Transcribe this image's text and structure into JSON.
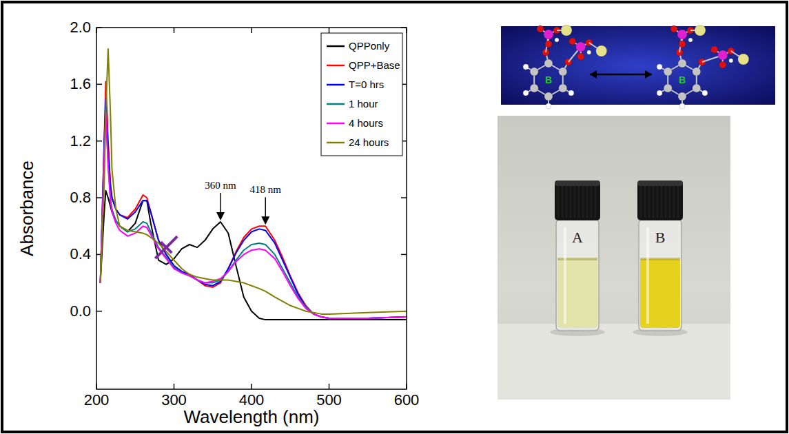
{
  "chart_data": {
    "type": "line",
    "x_label": "Wavelength (nm)",
    "y_label": "Absorbance",
    "xlim": [
      200,
      600
    ],
    "ylim": [
      -0.55,
      2.0
    ],
    "xticks": [
      200,
      300,
      400,
      500,
      600
    ],
    "yticks": [
      {
        "value": 0,
        "label": "0.0"
      },
      {
        "value": 0.4,
        "label": "0.4"
      },
      {
        "value": 0.8,
        "label": "0.8"
      },
      {
        "value": 1.2,
        "label": "1.2"
      },
      {
        "value": 1.6,
        "label": "1.6"
      },
      {
        "value": 2.0,
        "label": "2.0"
      }
    ],
    "grid": false,
    "legend": "upper right",
    "x": [
      205,
      210,
      212,
      215,
      218,
      220,
      225,
      230,
      240,
      250,
      260,
      265,
      270,
      280,
      290,
      300,
      310,
      320,
      330,
      340,
      350,
      360,
      370,
      380,
      390,
      400,
      410,
      418,
      430,
      440,
      450,
      460,
      470,
      480,
      490,
      500,
      550,
      600
    ],
    "series": [
      {
        "name": "QPPonly",
        "color": "#000000",
        "values": [
          0.2,
          0.7,
          0.85,
          0.8,
          0.74,
          0.7,
          0.64,
          0.6,
          0.56,
          0.62,
          0.78,
          0.78,
          0.62,
          0.36,
          0.33,
          0.37,
          0.44,
          0.47,
          0.45,
          0.5,
          0.58,
          0.63,
          0.55,
          0.32,
          0.1,
          0.0,
          -0.05,
          -0.06,
          -0.06,
          -0.06,
          -0.06,
          -0.06,
          -0.06,
          -0.06,
          -0.06,
          -0.06,
          -0.06,
          -0.06
        ]
      },
      {
        "name": "QPP+Base",
        "color": "#ff0000",
        "values": [
          0.2,
          1.2,
          1.62,
          1.2,
          0.9,
          0.8,
          0.72,
          0.68,
          0.66,
          0.72,
          0.82,
          0.8,
          0.7,
          0.5,
          0.4,
          0.32,
          0.28,
          0.26,
          0.22,
          0.18,
          0.17,
          0.2,
          0.3,
          0.42,
          0.52,
          0.58,
          0.6,
          0.6,
          0.5,
          0.38,
          0.25,
          0.13,
          0.04,
          -0.02,
          -0.04,
          -0.05,
          -0.05,
          -0.04
        ]
      },
      {
        "name": "T=0 hrs",
        "color": "#0000ff",
        "values": [
          0.2,
          1.2,
          1.5,
          1.15,
          0.88,
          0.8,
          0.72,
          0.68,
          0.65,
          0.7,
          0.78,
          0.78,
          0.7,
          0.5,
          0.4,
          0.32,
          0.28,
          0.26,
          0.22,
          0.19,
          0.18,
          0.21,
          0.3,
          0.41,
          0.5,
          0.56,
          0.58,
          0.57,
          0.48,
          0.36,
          0.24,
          0.12,
          0.03,
          -0.02,
          -0.04,
          -0.05,
          -0.05,
          -0.04
        ]
      },
      {
        "name": "1 hour",
        "color": "#008080",
        "values": [
          0.2,
          1.1,
          1.42,
          1.05,
          0.8,
          0.72,
          0.64,
          0.6,
          0.56,
          0.58,
          0.63,
          0.62,
          0.56,
          0.45,
          0.38,
          0.31,
          0.27,
          0.25,
          0.22,
          0.2,
          0.2,
          0.22,
          0.28,
          0.36,
          0.43,
          0.47,
          0.48,
          0.47,
          0.4,
          0.3,
          0.2,
          0.1,
          0.03,
          -0.02,
          -0.04,
          -0.05,
          -0.05,
          -0.04
        ]
      },
      {
        "name": "4 hours",
        "color": "#ff00ff",
        "values": [
          0.2,
          1.1,
          1.4,
          1.02,
          0.78,
          0.7,
          0.62,
          0.57,
          0.53,
          0.55,
          0.6,
          0.59,
          0.54,
          0.44,
          0.37,
          0.3,
          0.27,
          0.25,
          0.22,
          0.2,
          0.21,
          0.23,
          0.28,
          0.35,
          0.4,
          0.43,
          0.44,
          0.43,
          0.37,
          0.28,
          0.18,
          0.09,
          0.02,
          -0.02,
          -0.04,
          -0.05,
          -0.05,
          -0.04
        ]
      },
      {
        "name": "24 hours",
        "color": "#808000",
        "values": [
          0.2,
          0.9,
          1.4,
          1.85,
          1.4,
          1.0,
          0.72,
          0.6,
          0.57,
          0.56,
          0.55,
          0.54,
          0.52,
          0.48,
          0.42,
          0.36,
          0.3,
          0.26,
          0.24,
          0.23,
          0.22,
          0.22,
          0.22,
          0.21,
          0.2,
          0.18,
          0.16,
          0.14,
          0.1,
          0.07,
          0.04,
          0.02,
          0.0,
          -0.01,
          -0.02,
          -0.02,
          -0.01,
          0.0
        ]
      }
    ],
    "annotations": [
      {
        "text": "360 nm",
        "x": 360,
        "y": 0.63
      },
      {
        "text": "418 nm",
        "x": 418,
        "y": 0.6
      }
    ],
    "isosbestic_point": {
      "x": 290,
      "y": 0.45
    }
  },
  "panels": {
    "structure": {
      "ring_labels": [
        "B",
        "B"
      ]
    },
    "photo": {
      "vial_labels": [
        "A",
        "B"
      ]
    }
  }
}
